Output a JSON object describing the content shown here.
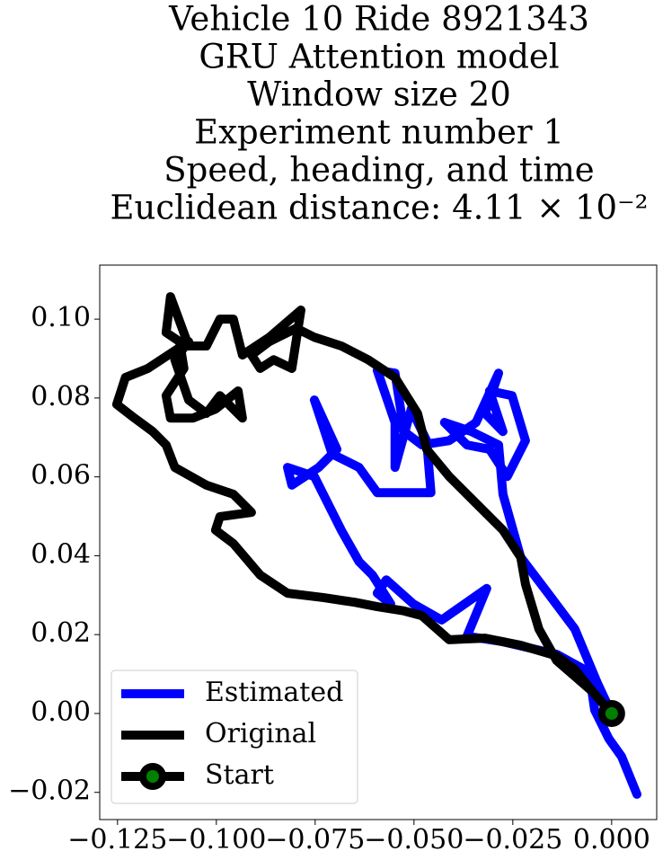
{
  "chart_data": {
    "type": "line",
    "title": [
      "Vehicle 10 Ride 8921343",
      "GRU Attention model",
      "Window size 20",
      "Experiment number 1",
      "Speed, heading, and time",
      "Euclidean distance: 4.11 × 10⁻²"
    ],
    "xlim": [
      -0.1295,
      0.0114
    ],
    "ylim": [
      -0.0269,
      0.1137
    ],
    "xticks": [
      {
        "value": -0.125,
        "label": "−0.125"
      },
      {
        "value": -0.1,
        "label": "−0.100"
      },
      {
        "value": -0.075,
        "label": "−0.075"
      },
      {
        "value": -0.05,
        "label": "−0.050"
      },
      {
        "value": -0.025,
        "label": "−0.025"
      },
      {
        "value": 0,
        "label": "0.000"
      }
    ],
    "yticks": [
      {
        "value": -0.02,
        "label": "−0.02"
      },
      {
        "value": 0,
        "label": "0.00"
      },
      {
        "value": 0.02,
        "label": "0.02"
      },
      {
        "value": 0.04,
        "label": "0.04"
      },
      {
        "value": 0.06,
        "label": "0.06"
      },
      {
        "value": 0.08,
        "label": "0.08"
      },
      {
        "value": 0.1,
        "label": "0.10"
      }
    ],
    "legend": "lower left",
    "series": [
      {
        "name": "Estimated",
        "color": "#0000ff",
        "x": [
          0.0064,
          0.0025,
          -0.0007,
          -0.0043,
          -0.0057,
          -0.0139,
          -0.0275,
          -0.0366,
          -0.0316,
          -0.043,
          -0.0502,
          -0.057,
          -0.0593,
          -0.0559,
          -0.0605,
          -0.0639,
          -0.0684,
          -0.0752,
          -0.082,
          -0.0809,
          -0.0741,
          -0.0695,
          -0.0752,
          -0.0707,
          -0.0639,
          -0.0593,
          -0.0457,
          -0.0468,
          -0.0507,
          -0.0548,
          -0.0548,
          -0.0593,
          -0.0548,
          -0.0525,
          -0.048,
          -0.0411,
          -0.0343,
          -0.0286,
          -0.032,
          -0.0275,
          -0.0309,
          -0.0252,
          -0.0218,
          -0.0264,
          -0.0309,
          -0.0366,
          -0.0423,
          -0.0355,
          -0.0286,
          -0.0275,
          -0.023,
          -0.0161,
          -0.0093,
          -0.0036,
          0
        ],
        "y": [
          -0.0205,
          -0.0109,
          -0.0064,
          0.0009,
          0.0105,
          0.015,
          0.0182,
          0.0196,
          0.0317,
          0.0237,
          0.0278,
          0.0339,
          0.0305,
          0.0278,
          0.0351,
          0.0385,
          0.0465,
          0.0601,
          0.0624,
          0.0579,
          0.0624,
          0.067,
          0.0795,
          0.0658,
          0.0624,
          0.056,
          0.056,
          0.0692,
          0.0772,
          0.0624,
          0.0738,
          0.087,
          0.0863,
          0.0715,
          0.0681,
          0.0692,
          0.0738,
          0.0863,
          0.0761,
          0.0715,
          0.0818,
          0.0806,
          0.0692,
          0.0601,
          0.067,
          0.0681,
          0.0738,
          0.0715,
          0.0681,
          0.0556,
          0.0396,
          0.0305,
          0.0214,
          0.0077,
          0
        ]
      },
      {
        "name": "Original",
        "color": "#000000",
        "x": [
          0,
          -0.0048,
          -0.0139,
          -0.0184,
          -0.0218,
          -0.023,
          -0.0275,
          -0.0343,
          -0.0411,
          -0.0468,
          -0.0491,
          -0.0548,
          -0.0616,
          -0.0684,
          -0.0752,
          -0.0798,
          -0.0866,
          -0.0911,
          -0.0889,
          -0.0855,
          -0.0809,
          -0.0786,
          -0.0866,
          -0.0934,
          -0.0957,
          -0.0991,
          -0.1025,
          -0.107,
          -0.1116,
          -0.1127,
          -0.1093,
          -0.1082,
          -0.1127,
          -0.1116,
          -0.1059,
          -0.1002,
          -0.0945,
          -0.0934,
          -0.0991,
          -0.1025,
          -0.107,
          -0.1105,
          -0.107,
          -0.1173,
          -0.123,
          -0.1252,
          -0.1207,
          -0.1161,
          -0.1127,
          -0.1105,
          -0.1025,
          -0.0957,
          -0.0911,
          -0.0991,
          -0.1002,
          -0.0957,
          -0.0889,
          -0.082,
          -0.073,
          -0.065,
          -0.0593,
          -0.0525,
          -0.048,
          -0.0411,
          -0.032,
          -0.023,
          -0.0139,
          -0.0093,
          -0.0048,
          0
        ],
        "y": [
          0,
          0.0055,
          0.0134,
          0.0214,
          0.0328,
          0.0396,
          0.0465,
          0.0533,
          0.0601,
          0.067,
          0.0761,
          0.0852,
          0.0897,
          0.0932,
          0.0954,
          0.0977,
          0.0943,
          0.0909,
          0.0875,
          0.0897,
          0.0875,
          0.1023,
          0.0954,
          0.0909,
          0.1,
          0.1,
          0.0932,
          0.0932,
          0.1057,
          0.0966,
          0.0943,
          0.0875,
          0.0806,
          0.0749,
          0.0749,
          0.0772,
          0.0818,
          0.0749,
          0.0806,
          0.0761,
          0.0795,
          0.0897,
          0.0943,
          0.0875,
          0.0852,
          0.0784,
          0.0749,
          0.0715,
          0.0681,
          0.0624,
          0.0579,
          0.0556,
          0.051,
          0.0499,
          0.0465,
          0.0431,
          0.0351,
          0.0305,
          0.0294,
          0.0282,
          0.0271,
          0.026,
          0.0248,
          0.0187,
          0.0191,
          0.0173,
          0.0146,
          0.0112,
          0.0055,
          0
        ]
      },
      {
        "name": "Start",
        "color": "#000000",
        "marker_color": "#008000",
        "x": [
          0
        ],
        "y": [
          0
        ]
      }
    ]
  }
}
